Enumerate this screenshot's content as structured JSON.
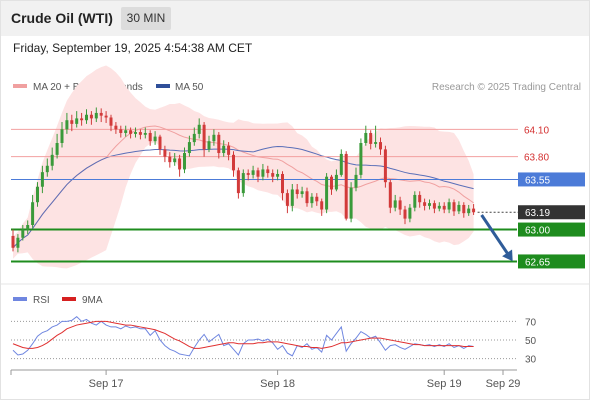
{
  "header": {
    "title": "Crude Oil (WTI)",
    "timeframe": "30 MIN",
    "datetime": "Friday, September 19, 2025 4:54:38 AM CET"
  },
  "legend": {
    "ma20_label": "MA 20 + Bollinger Bands",
    "ma50_label": "MA 50",
    "credit": "Research © 2025 Trading Central",
    "rsi_label": "RSI",
    "rsi_ma_label": "9MA"
  },
  "colors": {
    "band_fill": "#fde3e3",
    "ma20": "#f0a0a0",
    "ma50": "#5a6fb8",
    "resistance": "#f2a0a0",
    "pivot": "#4c7bd8",
    "support": "#1e8c1e",
    "current": "#333333",
    "arrow": "#2f5c99",
    "rsi": "#6f86e0",
    "rsi_ma": "#e03030"
  },
  "chart_data": [
    {
      "type": "candlestick",
      "title": "Crude Oil (WTI)",
      "timeframe": "30 MIN",
      "ylim": [
        62.6,
        64.4
      ],
      "x_ticks": [
        "Sep 17",
        "Sep 18",
        "Sep 19",
        "Sep 29"
      ],
      "levels": [
        {
          "value": 64.1,
          "label": "64.10",
          "kind": "resistance"
        },
        {
          "value": 63.8,
          "label": "63.80",
          "kind": "resistance"
        },
        {
          "value": 63.55,
          "label": "63.55",
          "kind": "pivot"
        },
        {
          "value": 63.19,
          "label": "63.19",
          "kind": "current"
        },
        {
          "value": 63.0,
          "label": "63.00",
          "kind": "support"
        },
        {
          "value": 62.65,
          "label": "62.65",
          "kind": "support"
        }
      ],
      "candles": [
        [
          62.93,
          62.8,
          63.0,
          62.76
        ],
        [
          62.8,
          62.91,
          62.95,
          62.75
        ],
        [
          62.91,
          63.0,
          63.05,
          62.88
        ],
        [
          63.0,
          63.05,
          63.1,
          62.95
        ],
        [
          63.05,
          63.3,
          63.38,
          63.02
        ],
        [
          63.3,
          63.47,
          63.52,
          63.25
        ],
        [
          63.47,
          63.63,
          63.7,
          63.4
        ],
        [
          63.63,
          63.7,
          63.78,
          63.58
        ],
        [
          63.7,
          63.82,
          63.9,
          63.65
        ],
        [
          63.82,
          63.95,
          64.05,
          63.78
        ],
        [
          63.95,
          64.1,
          64.18,
          63.9
        ],
        [
          64.1,
          64.2,
          64.28,
          64.05
        ],
        [
          64.2,
          64.16,
          64.26,
          64.08
        ],
        [
          64.16,
          64.22,
          64.3,
          64.12
        ],
        [
          64.22,
          64.2,
          64.28,
          64.14
        ],
        [
          64.2,
          64.26,
          64.32,
          64.16
        ],
        [
          64.26,
          64.22,
          64.3,
          64.15
        ],
        [
          64.22,
          64.28,
          64.34,
          64.18
        ],
        [
          64.28,
          64.25,
          64.33,
          64.18
        ],
        [
          64.25,
          64.23,
          64.3,
          64.17
        ],
        [
          64.23,
          64.14,
          64.26,
          64.08
        ],
        [
          64.14,
          64.1,
          64.18,
          64.05
        ],
        [
          64.1,
          64.06,
          64.14,
          64.01
        ],
        [
          64.06,
          64.09,
          64.14,
          64.02
        ],
        [
          64.09,
          64.05,
          64.12,
          64.0
        ],
        [
          64.05,
          64.07,
          64.12,
          64.01
        ],
        [
          64.07,
          64.04,
          64.1,
          63.99
        ],
        [
          64.04,
          64.06,
          64.12,
          64.0
        ],
        [
          64.06,
          63.97,
          64.09,
          63.92
        ],
        [
          63.97,
          64.02,
          64.08,
          63.93
        ],
        [
          64.02,
          63.88,
          64.04,
          63.82
        ],
        [
          63.88,
          63.8,
          63.92,
          63.74
        ],
        [
          63.8,
          63.74,
          63.85,
          63.68
        ],
        [
          63.74,
          63.78,
          63.84,
          63.7
        ],
        [
          63.78,
          63.66,
          63.82,
          63.58
        ],
        [
          63.66,
          63.84,
          63.9,
          63.62
        ],
        [
          63.84,
          63.96,
          64.03,
          63.8
        ],
        [
          63.96,
          64.05,
          64.12,
          63.92
        ],
        [
          64.05,
          64.15,
          64.22,
          64.0
        ],
        [
          64.15,
          63.88,
          64.18,
          63.8
        ],
        [
          63.88,
          63.97,
          64.03,
          63.85
        ],
        [
          63.97,
          64.04,
          64.1,
          63.92
        ],
        [
          64.04,
          63.84,
          64.07,
          63.78
        ],
        [
          63.84,
          63.92,
          63.98,
          63.8
        ],
        [
          63.92,
          63.82,
          63.96,
          63.76
        ],
        [
          63.82,
          63.65,
          63.86,
          63.58
        ],
        [
          63.65,
          63.4,
          63.68,
          63.34
        ],
        [
          63.4,
          63.62,
          63.66,
          63.36
        ],
        [
          63.62,
          63.6,
          63.66,
          63.54
        ],
        [
          63.6,
          63.65,
          63.7,
          63.56
        ],
        [
          63.65,
          63.58,
          63.68,
          63.52
        ],
        [
          63.58,
          63.66,
          63.72,
          63.54
        ],
        [
          63.66,
          63.62,
          63.7,
          63.57
        ],
        [
          63.62,
          63.58,
          63.66,
          63.52
        ],
        [
          63.58,
          63.61,
          63.66,
          63.54
        ],
        [
          63.61,
          63.4,
          63.64,
          63.32
        ],
        [
          63.4,
          63.26,
          63.44,
          63.18
        ],
        [
          63.26,
          63.44,
          63.5,
          63.2
        ],
        [
          63.44,
          63.39,
          63.5,
          63.34
        ],
        [
          63.39,
          63.42,
          63.47,
          63.35
        ],
        [
          63.42,
          63.29,
          63.46,
          63.25
        ],
        [
          63.29,
          63.36,
          63.4,
          63.24
        ],
        [
          63.36,
          63.31,
          63.4,
          63.26
        ],
        [
          63.31,
          63.22,
          63.34,
          63.15
        ],
        [
          63.22,
          63.58,
          63.62,
          63.18
        ],
        [
          63.58,
          63.44,
          63.6,
          63.38
        ],
        [
          63.44,
          63.6,
          63.66,
          63.42
        ],
        [
          63.6,
          63.83,
          63.88,
          63.58
        ],
        [
          63.83,
          63.12,
          63.86,
          63.1
        ],
        [
          63.12,
          63.46,
          63.52,
          63.08
        ],
        [
          63.46,
          63.6,
          63.68,
          63.42
        ],
        [
          63.6,
          63.95,
          64.0,
          63.56
        ],
        [
          63.95,
          64.06,
          64.14,
          63.92
        ],
        [
          64.06,
          63.94,
          64.09,
          63.88
        ],
        [
          63.94,
          63.96,
          64.14,
          63.9
        ],
        [
          63.96,
          63.88,
          64.01,
          63.82
        ],
        [
          63.88,
          63.52,
          63.92,
          63.46
        ],
        [
          63.52,
          63.24,
          63.55,
          63.18
        ],
        [
          63.24,
          63.32,
          63.38,
          63.2
        ],
        [
          63.32,
          63.22,
          63.36,
          63.16
        ],
        [
          63.22,
          63.12,
          63.26,
          63.06
        ],
        [
          63.12,
          63.24,
          63.28,
          63.08
        ],
        [
          63.24,
          63.38,
          63.42,
          63.2
        ],
        [
          63.38,
          63.3,
          63.42,
          63.24
        ],
        [
          63.3,
          63.26,
          63.34,
          63.21
        ],
        [
          63.26,
          63.29,
          63.33,
          63.22
        ],
        [
          63.29,
          63.23,
          63.32,
          63.18
        ],
        [
          63.23,
          63.26,
          63.3,
          63.2
        ],
        [
          63.26,
          63.22,
          63.3,
          63.18
        ],
        [
          63.22,
          63.3,
          63.34,
          63.18
        ],
        [
          63.3,
          63.2,
          63.33,
          63.15
        ],
        [
          63.2,
          63.27,
          63.31,
          63.17
        ],
        [
          63.27,
          63.18,
          63.3,
          63.13
        ],
        [
          63.18,
          63.23,
          63.27,
          63.15
        ],
        [
          63.23,
          63.19,
          63.28,
          63.16
        ]
      ]
    },
    {
      "type": "line",
      "series": [
        {
          "name": "RSI",
          "values": [
            39,
            34,
            35,
            39,
            46,
            54,
            58,
            60,
            64,
            66,
            70,
            70,
            71,
            75,
            70,
            72,
            68,
            66,
            70,
            66,
            64,
            64,
            62,
            65,
            63,
            64,
            62,
            62,
            55,
            60,
            50,
            44,
            40,
            38,
            35,
            34,
            33,
            42,
            50,
            56,
            48,
            52,
            56,
            44,
            46,
            40,
            34,
            46,
            50,
            50,
            51,
            49,
            51,
            47,
            40,
            44,
            36,
            33,
            44,
            42,
            46,
            40,
            42,
            37,
            55,
            50,
            57,
            64,
            38,
            46,
            52,
            59,
            56,
            52,
            54,
            47,
            39,
            44,
            45,
            42,
            40,
            43,
            46,
            45,
            44,
            45,
            43,
            45,
            43,
            46,
            42,
            44,
            41,
            44,
            43
          ]
        },
        {
          "name": "9MA",
          "values": [
            46,
            44,
            42,
            41,
            41,
            42,
            44,
            47,
            51,
            55,
            58,
            62,
            64,
            66,
            67,
            68,
            69,
            70,
            70,
            70,
            69,
            68,
            67,
            66,
            66,
            65,
            64,
            63,
            62,
            61,
            59,
            57,
            54,
            51,
            49,
            46,
            43,
            41,
            41,
            42,
            43,
            44,
            45,
            46,
            47,
            47,
            46,
            46,
            46,
            46,
            47,
            47,
            48,
            48,
            48,
            47,
            46,
            45,
            44,
            43,
            43,
            42,
            42,
            41,
            42,
            43,
            45,
            47,
            47,
            48,
            49,
            50,
            51,
            52,
            52,
            52,
            51,
            50,
            49,
            48,
            47,
            46,
            45,
            45,
            44,
            44,
            44,
            44,
            44,
            44,
            44,
            44,
            43,
            43,
            43
          ]
        }
      ],
      "ylim": [
        20,
        80
      ],
      "y_ticks": [
        70,
        50,
        30
      ]
    }
  ]
}
